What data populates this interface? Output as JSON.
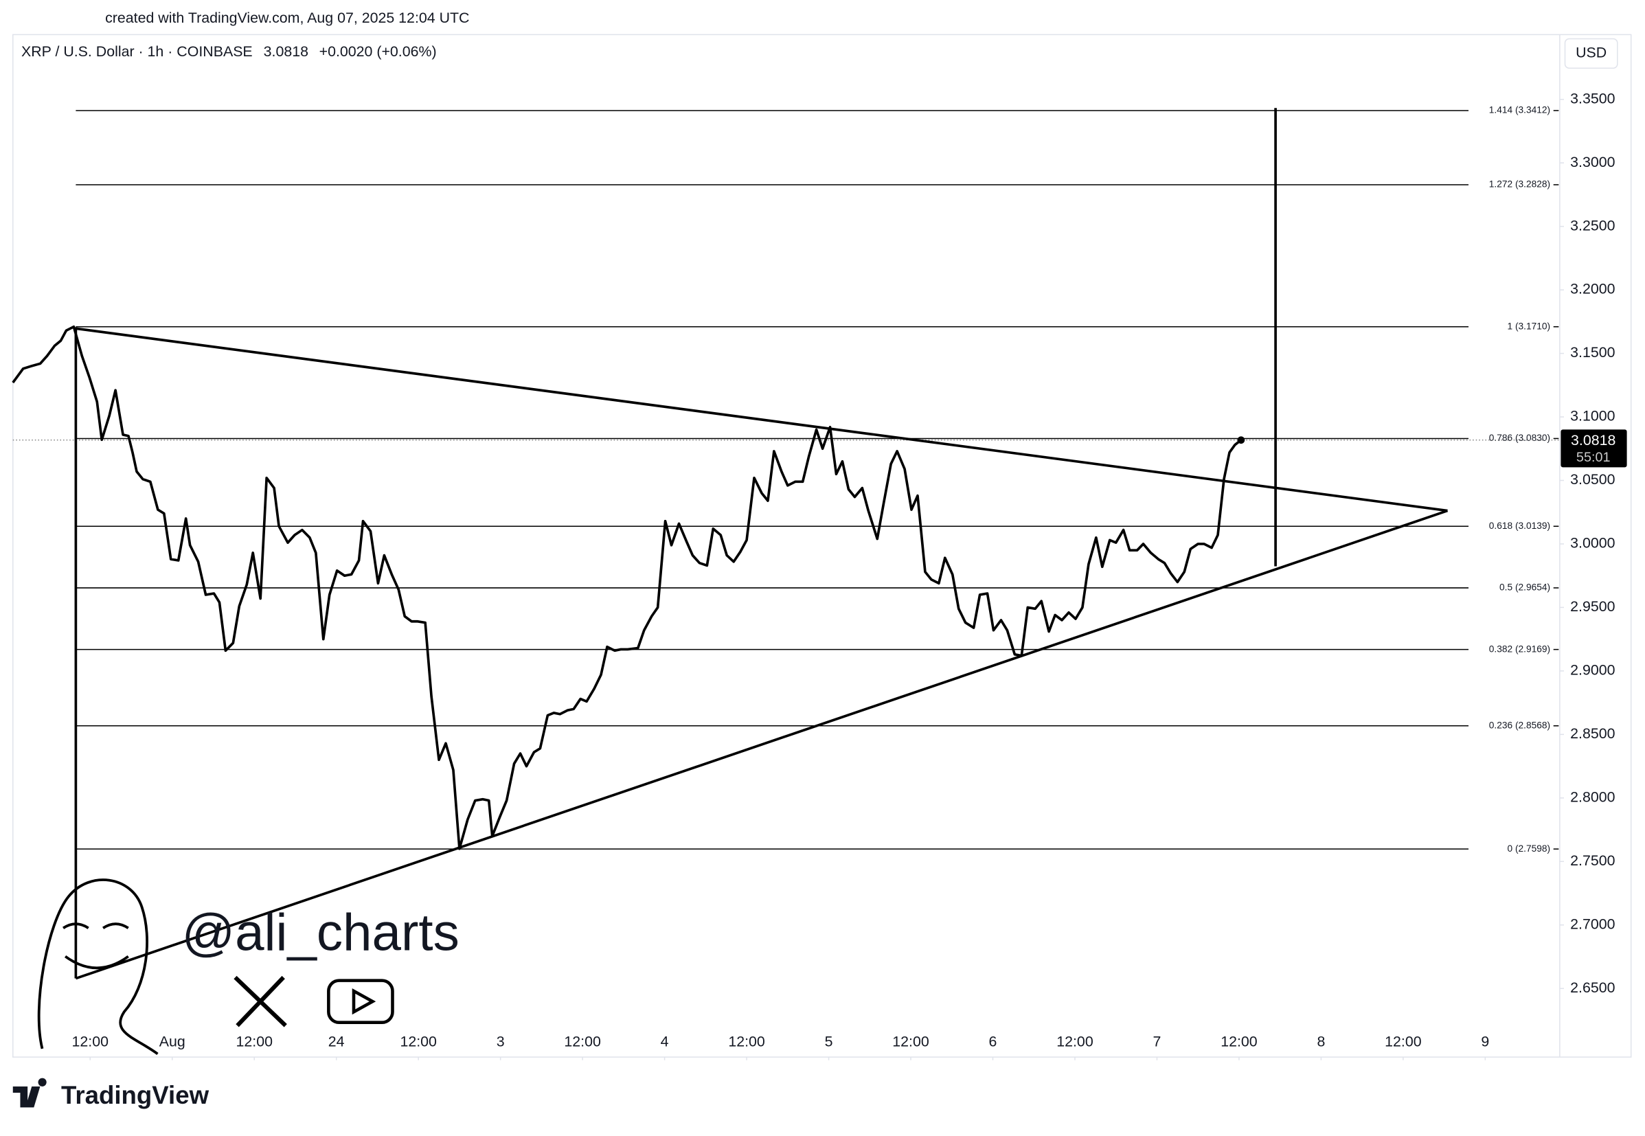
{
  "credit": "created with TradingView.com, Aug 07, 2025 12:04 UTC",
  "currency": "USD",
  "watermark": "@ali_charts",
  "footer": "TradingView",
  "chart_data": {
    "type": "line",
    "title": "XRP / U.S. Dollar · 1h · COINBASE",
    "change": "+0.0020 (+0.06%)",
    "price_label": {
      "value": 3.0818,
      "label": "3.0818"
    },
    "countdown": "55:01",
    "x": [
      -23.3,
      -21.8,
      -20.6,
      -19.3,
      -18.3,
      -17.2,
      -16.3,
      -15.5,
      -14.4,
      -13.2,
      -12.1,
      -11.0,
      -10.3,
      -9.2,
      -8.3,
      -7.2,
      -6.4,
      -5.8,
      -5.2,
      -4.3,
      -3.2,
      -2.1,
      -1.2,
      -0.2,
      0.9,
      2.0,
      2.6,
      3.8,
      4.9,
      6.1,
      6.9,
      7.8,
      8.9,
      9.8,
      10.9,
      11.8,
      12.9,
      13.8,
      14.9,
      15.6,
      16.9,
      17.9,
      19.0,
      20.1,
      21.0,
      22.1,
      23.0,
      24.1,
      25.2,
      26.2,
      27.3,
      27.9,
      29.0,
      30.1,
      31.0,
      32.1,
      33.1,
      34.0,
      35.0,
      35.9,
      37.0,
      37.9,
      39.0,
      40.0,
      41.1,
      42.0,
      43.2,
      44.3,
      45.4,
      46.3,
      46.8,
      47.9,
      48.9,
      50.0,
      50.9,
      51.8,
      52.9,
      53.8,
      54.9,
      55.8,
      56.7,
      57.8,
      58.7,
      59.7,
      60.6,
      61.7,
      62.7,
      63.6,
      64.7,
      65.6,
      66.6,
      68.1,
      69.0,
      70.1,
      71.0,
      72.1,
      73.0,
      74.1,
      75.2,
      76.1,
      77.1,
      78.2,
      79.1,
      80.2,
      81.1,
      82.1,
      83.1,
      84.0,
      85.1,
      86.2,
      87.1,
      88.0,
      89.1,
      90.0,
      91.1,
      92.2,
      93.1,
      94.2,
      95.1,
      96.2,
      97.1,
      98.0,
      98.9,
      99.8,
      100.9,
      101.8,
      103.1,
      104.0,
      105.1,
      106.0,
      107.1,
      108.1,
      109.0,
      110.1,
      111.0,
      112.1,
      113.0,
      114.1,
      115.0,
      116.0,
      117.2,
      118.1,
      119.2,
      120.1,
      121.2,
      122.1,
      123.2,
      124.2,
      125.1,
      126.2,
      127.1,
      128.2,
      129.1,
      130.1,
      131.1,
      132.1,
      133.1,
      134.0,
      135.1,
      136.0,
      137.1,
      138.0,
      139.1,
      140.0,
      141.1,
      142.0,
      143.1,
      144.2,
      145.1,
      146.0,
      147.0,
      148.0,
      148.9,
      150.0,
      150.9,
      152.0,
      152.9,
      153.8,
      154.6,
      155.4,
      156.3
    ],
    "series": [
      {
        "color": "#000000",
        "values": [
          3.127,
          3.138,
          3.14,
          3.142,
          3.148,
          3.156,
          3.16,
          3.168,
          3.171,
          3.148,
          3.131,
          3.112,
          3.082,
          3.101,
          3.121,
          3.086,
          3.085,
          3.072,
          3.057,
          3.051,
          3.049,
          3.027,
          3.024,
          2.988,
          2.987,
          3.02,
          2.999,
          2.986,
          2.96,
          2.961,
          2.954,
          2.916,
          2.922,
          2.951,
          2.968,
          2.993,
          2.957,
          3.052,
          3.044,
          3.014,
          3.001,
          3.007,
          3.011,
          3.005,
          2.993,
          2.925,
          2.96,
          2.979,
          2.975,
          2.976,
          2.987,
          3.018,
          3.01,
          2.969,
          2.991,
          2.976,
          2.964,
          2.943,
          2.939,
          2.939,
          2.938,
          2.88,
          2.83,
          2.843,
          2.822,
          2.76,
          2.783,
          2.798,
          2.799,
          2.798,
          2.77,
          2.785,
          2.798,
          2.827,
          2.835,
          2.825,
          2.836,
          2.839,
          2.865,
          2.867,
          2.866,
          2.869,
          2.87,
          2.878,
          2.876,
          2.886,
          2.897,
          2.919,
          2.916,
          2.917,
          2.917,
          2.918,
          2.932,
          2.943,
          2.95,
          3.018,
          2.999,
          3.016,
          3.002,
          2.991,
          2.985,
          2.983,
          3.012,
          3.007,
          2.991,
          2.986,
          2.994,
          3.003,
          3.052,
          3.04,
          3.034,
          3.073,
          3.057,
          3.046,
          3.049,
          3.049,
          3.069,
          3.09,
          3.075,
          3.092,
          3.055,
          3.065,
          3.043,
          3.037,
          3.044,
          3.026,
          3.004,
          3.031,
          3.063,
          3.073,
          3.059,
          3.027,
          3.038,
          2.978,
          2.972,
          2.969,
          2.989,
          2.976,
          2.949,
          2.938,
          2.934,
          2.96,
          2.961,
          2.932,
          2.94,
          2.932,
          2.913,
          2.912,
          2.95,
          2.949,
          2.955,
          2.931,
          2.944,
          2.94,
          2.946,
          2.941,
          2.95,
          2.984,
          3.005,
          2.982,
          3.003,
          3.001,
          3.011,
          2.995,
          2.995,
          3.0,
          2.993,
          2.988,
          2.985,
          2.977,
          2.97,
          2.978,
          2.996,
          3.0,
          3.0,
          2.997,
          3.007,
          3.051,
          3.072,
          3.078,
          3.0818
        ]
      }
    ],
    "xlim": [
      -23.3,
      202.9
    ],
    "xticks": [
      {
        "value": -12,
        "label": "12:00"
      },
      {
        "value": 0,
        "label": "Aug"
      },
      {
        "value": 12,
        "label": "12:00"
      },
      24,
      {
        "value": 36,
        "label": "12:00"
      },
      {
        "value": 48,
        "label": "3"
      },
      {
        "value": 60,
        "label": "12:00"
      },
      {
        "value": 72,
        "label": "4"
      },
      {
        "value": 84,
        "label": "12:00"
      },
      {
        "value": 96,
        "label": "5"
      },
      {
        "value": 108,
        "label": "12:00"
      },
      {
        "value": 120,
        "label": "6"
      },
      {
        "value": 132,
        "label": "12:00"
      },
      {
        "value": 144,
        "label": "7"
      },
      {
        "value": 156,
        "label": "12:00"
      },
      {
        "value": 168,
        "label": "8"
      },
      {
        "value": 180,
        "label": "12:00"
      },
      {
        "value": 192,
        "label": "9"
      }
    ],
    "ylim": [
      2.596,
      3.401
    ],
    "yticks": [
      {
        "value": 2.65,
        "label": "2.6500"
      },
      {
        "value": 2.7,
        "label": "2.7000"
      },
      {
        "value": 2.75,
        "label": "2.7500"
      },
      {
        "value": 2.8,
        "label": "2.8000"
      },
      {
        "value": 2.85,
        "label": "2.8500"
      },
      {
        "value": 2.9,
        "label": "2.9000"
      },
      {
        "value": 2.95,
        "label": "2.9500"
      },
      {
        "value": 3.0,
        "label": "3.0000"
      },
      {
        "value": 3.05,
        "label": "3.0500"
      },
      {
        "value": 3.1,
        "label": "3.1000"
      },
      {
        "value": 3.15,
        "label": "3.1500"
      },
      {
        "value": 3.2,
        "label": "3.2000"
      },
      {
        "value": 3.25,
        "label": "3.2500"
      },
      {
        "value": 3.3,
        "label": "3.3000"
      },
      {
        "value": 3.35,
        "label": "3.3500"
      }
    ],
    "annotations": [
      {
        "value": 3.3412,
        "label": "1.414 (3.3412)"
      },
      {
        "value": 3.2828,
        "label": "1.272 (3.2828)"
      },
      {
        "value": 3.171,
        "label": "1 (3.1710)"
      },
      {
        "value": 3.083,
        "label": "0.786 (3.0830)"
      },
      {
        "value": 3.0139,
        "label": "0.618 (3.0139)"
      },
      {
        "value": 2.9654,
        "label": "0.5 (2.9654)"
      },
      {
        "value": 2.9169,
        "label": "0.382 (2.9169)"
      },
      {
        "value": 2.8568,
        "label": "0.236 (2.8568)"
      },
      {
        "value": 2.7598,
        "label": "0 (2.7598)"
      }
    ]
  }
}
